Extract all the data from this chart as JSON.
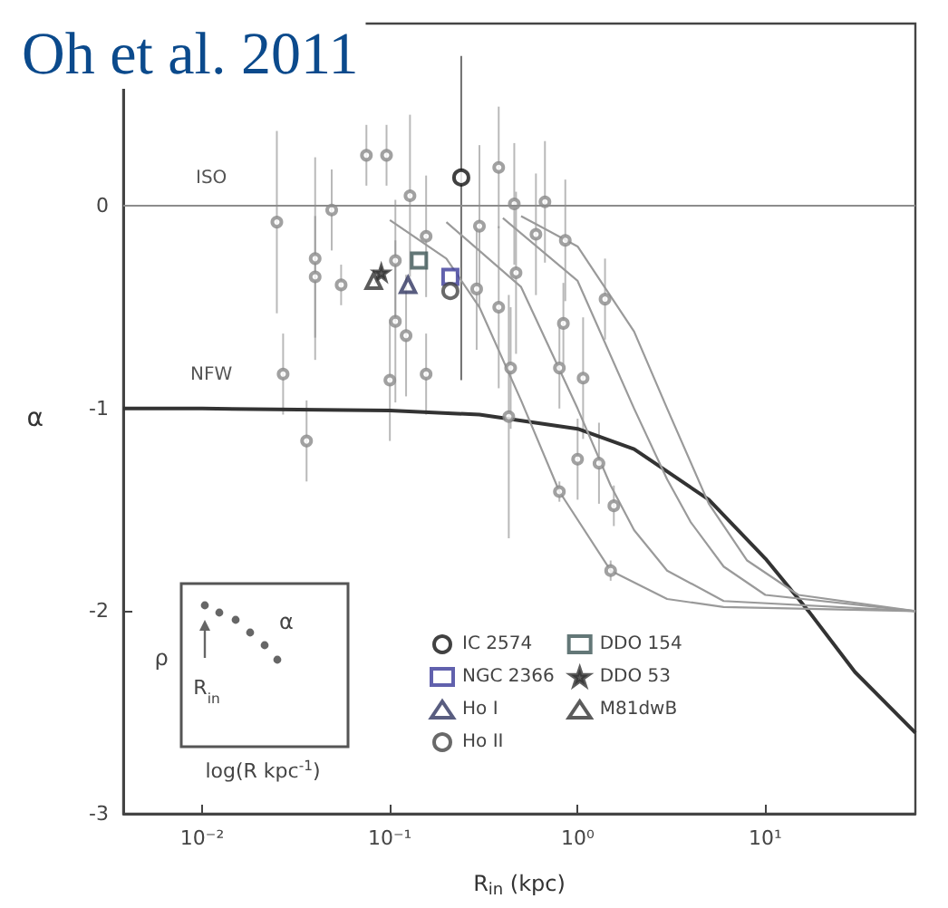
{
  "chart_data": {
    "type": "scatter",
    "title": "Oh et al. 2011",
    "xlabel": "R$_{in}$ (kpc)",
    "ylabel": "α",
    "log": "x",
    "xlim": [
      0.0038,
      63
    ],
    "xticks": [
      {
        "value": 0.01,
        "label": "10⁻²"
      },
      {
        "value": 0.1,
        "label": "10⁻¹"
      },
      {
        "value": 1,
        "label": "10⁰"
      },
      {
        "value": 10,
        "label": "10¹"
      }
    ],
    "ylim": [
      -3,
      0.9
    ],
    "yticks": [
      -3,
      -2,
      -1,
      0
    ],
    "legend": "bottom right",
    "ref_lines": [
      {
        "axis": "y",
        "value": 0,
        "label": "ISO",
        "color": "#8c8c8c"
      }
    ],
    "annotations": [
      "NFW",
      "ρ",
      "α",
      "R$_{in}$",
      "log(R kpc$^{-1}$)"
    ],
    "series": [
      {
        "type": "line",
        "color": "#333333",
        "marker": "none",
        "x": [
          0.0038,
          0.01,
          0.1,
          0.3,
          1,
          2,
          5,
          10,
          17,
          30,
          63
        ],
        "values": [
          -1,
          -1,
          -1.01,
          -1.03,
          -1.1,
          -1.2,
          -1.45,
          -1.74,
          -2,
          -2.3,
          -2.6
        ]
      },
      {
        "type": "line",
        "color": "#9a9a9a",
        "marker": "none",
        "x": [
          0.1,
          0.2,
          0.3,
          0.5,
          0.8,
          1.5,
          3,
          6,
          63
        ],
        "values": [
          -0.07,
          -0.26,
          -0.5,
          -0.96,
          -1.41,
          -1.8,
          -1.94,
          -1.98,
          -2
        ]
      },
      {
        "type": "line",
        "color": "#9a9a9a",
        "marker": "none",
        "x": [
          0.2,
          0.5,
          1,
          1.5,
          2,
          3,
          6,
          63
        ],
        "values": [
          -0.08,
          -0.4,
          -1,
          -1.38,
          -1.6,
          -1.8,
          -1.95,
          -2
        ]
      },
      {
        "type": "line",
        "color": "#9a9a9a",
        "marker": "none",
        "x": [
          0.4,
          1,
          2,
          3,
          4,
          6,
          10,
          63
        ],
        "values": [
          -0.06,
          -0.37,
          -1,
          -1.35,
          -1.56,
          -1.78,
          -1.92,
          -2
        ]
      },
      {
        "type": "line",
        "color": "#9a9a9a",
        "marker": "none",
        "x": [
          0.5,
          1,
          2,
          3,
          5,
          8,
          15,
          63
        ],
        "values": [
          -0.05,
          -0.2,
          -0.62,
          -1,
          -1.47,
          -1.75,
          -1.92,
          -2
        ]
      },
      {
        "color": "#8a8a8a",
        "marker": "circle",
        "x": [
          0.025,
          0.027,
          0.036,
          0.04,
          0.04,
          0.049,
          0.055,
          0.075,
          0.096,
          0.1,
          0.107,
          0.107,
          0.122,
          0.128,
          0.156,
          0.156,
          0.29,
          0.3,
          0.38,
          0.38,
          0.44,
          0.43,
          0.46,
          0.47,
          0.6,
          0.67,
          0.86,
          0.84,
          0.8,
          1.07,
          1.4,
          1.0,
          1.3,
          1.56,
          0.8,
          1.5
        ],
        "values": [
          -0.08,
          -0.83,
          -1.16,
          -0.26,
          -0.35,
          -0.02,
          -0.39,
          0.25,
          0.25,
          -0.86,
          -0.57,
          -0.27,
          -0.64,
          0.05,
          -0.83,
          -0.15,
          -0.41,
          -0.1,
          0.19,
          -0.5,
          -0.8,
          -1.04,
          0.01,
          -0.33,
          -0.14,
          0.02,
          -0.17,
          -0.58,
          -0.8,
          -0.85,
          -0.46,
          -1.25,
          -1.27,
          -1.48,
          -1.41,
          -1.8
        ],
        "errors": [
          0.45,
          0.2,
          0.2,
          0.5,
          0.3,
          0.2,
          0.1,
          0.15,
          0.15,
          0.3,
          0.4,
          0.3,
          0.3,
          0.4,
          0.2,
          0.3,
          0.3,
          0.4,
          0.3,
          0.4,
          0.3,
          0.6,
          0.3,
          0.4,
          0.3,
          0.3,
          0.3,
          0.2,
          0.2,
          0.3,
          0.2,
          0.2,
          0.2,
          0.1,
          0.05,
          0.05
        ]
      },
      {
        "name": "IC 2574",
        "color": "#111111",
        "marker": "circle",
        "x": [
          0.24
        ],
        "values": [
          0.14
        ],
        "errors": [
          [
            -0.86,
            0.74
          ]
        ]
      },
      {
        "name": "NGC 2366",
        "color": "#3a3a99",
        "marker": "square",
        "x": [
          0.21
        ],
        "values": [
          -0.35
        ]
      },
      {
        "name": "Ho I",
        "color": "#2f3560",
        "marker": "triangle",
        "x": [
          0.125
        ],
        "values": [
          -0.39
        ]
      },
      {
        "name": "Ho II",
        "color": "#444444",
        "marker": "circle",
        "x": [
          0.21
        ],
        "values": [
          -0.42
        ]
      },
      {
        "name": "DDO 154",
        "color": "#3c5555",
        "marker": "square",
        "x": [
          0.143
        ],
        "values": [
          -0.27
        ]
      },
      {
        "name": "DDO 53",
        "color": "#333333",
        "marker": "star",
        "x": [
          0.09
        ],
        "values": [
          -0.33
        ]
      },
      {
        "name": "M81dwB",
        "color": "#333333",
        "marker": "triangle",
        "x": [
          0.082
        ],
        "values": [
          -0.37
        ]
      }
    ]
  }
}
